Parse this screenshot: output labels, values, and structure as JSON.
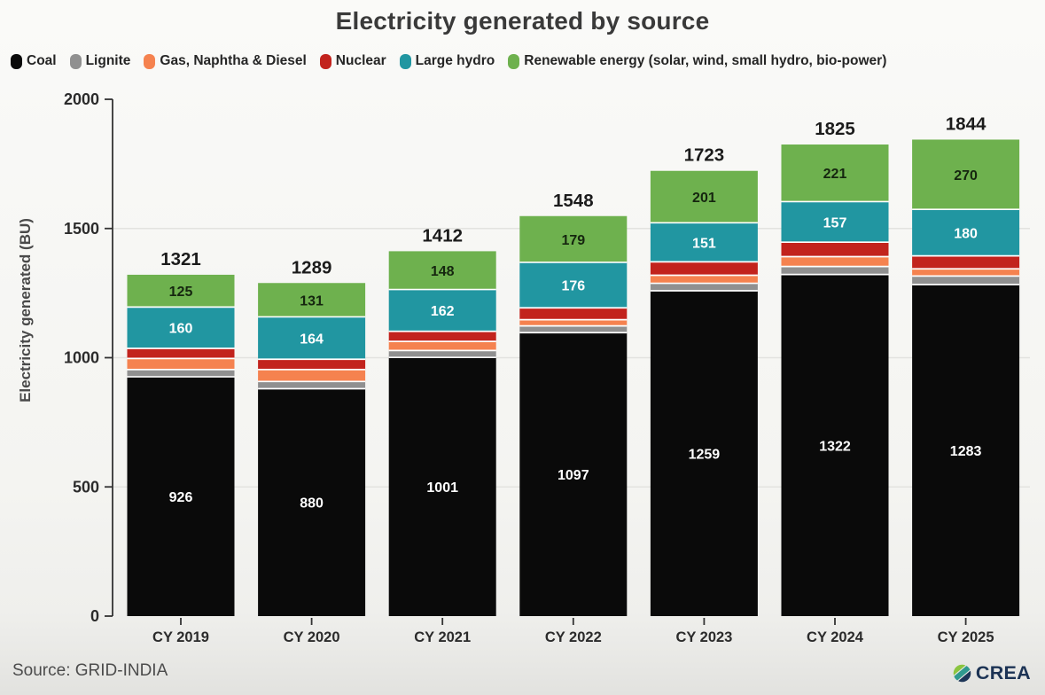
{
  "page": {
    "title": "Electricity generated by source"
  },
  "footer": {
    "source_text": "Source: GRID-INDIA",
    "logo_text": "CREA"
  },
  "colors": {
    "background": "#f4f4f1",
    "title_text": "#3a3a3a",
    "axis": "#333333",
    "gridline": "#e3e3e0",
    "total_label": "#1b1b1b",
    "source_text": "#4c4c4c",
    "logo_navy": "#1c3354",
    "logo_green": "#8bc540",
    "logo_teal": "#2f9a8f"
  },
  "chart_data": {
    "type": "bar",
    "stacked": true,
    "title": "Electricity generated by source",
    "xlabel": "",
    "ylabel": "Electricity generated (BU)",
    "ylim": [
      0,
      2000
    ],
    "yticks": [
      0,
      500,
      1000,
      1500,
      2000
    ],
    "grid": true,
    "legend_position": "top-left",
    "categories": [
      "CY 2019",
      "CY 2020",
      "CY 2021",
      "CY 2022",
      "CY 2023",
      "CY 2024",
      "CY 2025"
    ],
    "series": [
      {
        "name": "Coal",
        "color": "#0a0a0a",
        "values": [
          926,
          880,
          1001,
          1097,
          1259,
          1322,
          1283
        ],
        "show_values": true,
        "value_color": "#ffffff"
      },
      {
        "name": "Lignite",
        "color": "#909090",
        "values": [
          28,
          28,
          27,
          26,
          29,
          31,
          33
        ],
        "show_values": false,
        "value_color": "#ffffff"
      },
      {
        "name": "Gas, Naphtha & Diesel",
        "color": "#f5824f",
        "values": [
          43,
          46,
          35,
          24,
          31,
          38,
          28
        ],
        "show_values": false,
        "value_color": "#ffffff"
      },
      {
        "name": "Nuclear",
        "color": "#c2231d",
        "values": [
          39,
          40,
          39,
          46,
          52,
          56,
          50
        ],
        "show_values": false,
        "value_color": "#ffffff"
      },
      {
        "name": "Large hydro",
        "color": "#2196a1",
        "values": [
          160,
          164,
          162,
          176,
          151,
          157,
          180
        ],
        "show_values": true,
        "value_color": "#ffffff"
      },
      {
        "name": "Renewable energy (solar, wind, small hydro, bio-power)",
        "color": "#6eb14e",
        "values": [
          125,
          131,
          148,
          179,
          201,
          221,
          270
        ],
        "show_values": true,
        "value_color": "#15260f"
      }
    ],
    "totals": [
      1321,
      1289,
      1412,
      1548,
      1723,
      1825,
      1844
    ]
  }
}
